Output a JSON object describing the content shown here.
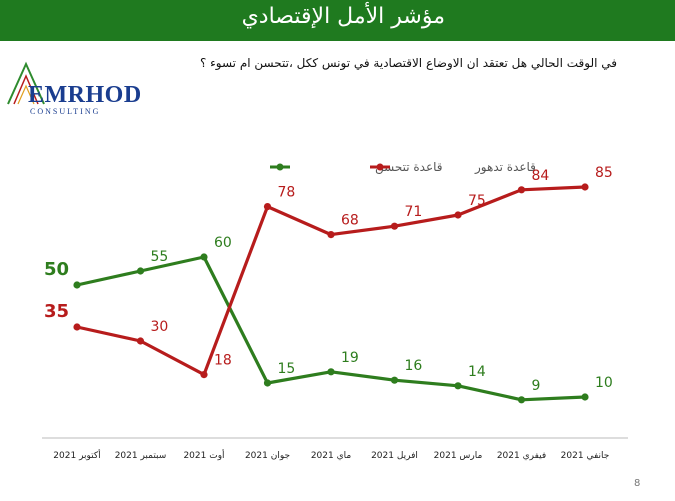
{
  "header": {
    "title": "مؤشر الأمل الإقتصادي"
  },
  "question": "في الوقت الحالي هل تعتقد ان الاوضاع الاقتصادية في تونس ككل ،تتحسن ام تسوء ؟",
  "logo": {
    "text": "EMRHOD",
    "subtitle": "CONSULTING"
  },
  "page_number": "8",
  "colors": {
    "header_bg": "#1f7a1f",
    "improve": "#2e7d1e",
    "decline": "#b71c1c"
  },
  "chart_data": {
    "type": "line",
    "categories": [
      "أكتوبر 2021",
      "سبتمبر 2021",
      "أوت 2021",
      "جوان 2021",
      "ماي 2021",
      "افريل 2021",
      "مارس 2021",
      "فيفري 2021",
      "جانفي 2021"
    ],
    "series": [
      {
        "name": "قاعدة تتحسن",
        "color": "#2e7d1e",
        "values": [
          50,
          55,
          60,
          15,
          19,
          16,
          14,
          9,
          10
        ]
      },
      {
        "name": "قاعدة تدهور",
        "color": "#b71c1c",
        "values": [
          35,
          30,
          18,
          78,
          68,
          71,
          75,
          84,
          85
        ]
      }
    ],
    "legend_position": "top-center",
    "grid": false
  }
}
